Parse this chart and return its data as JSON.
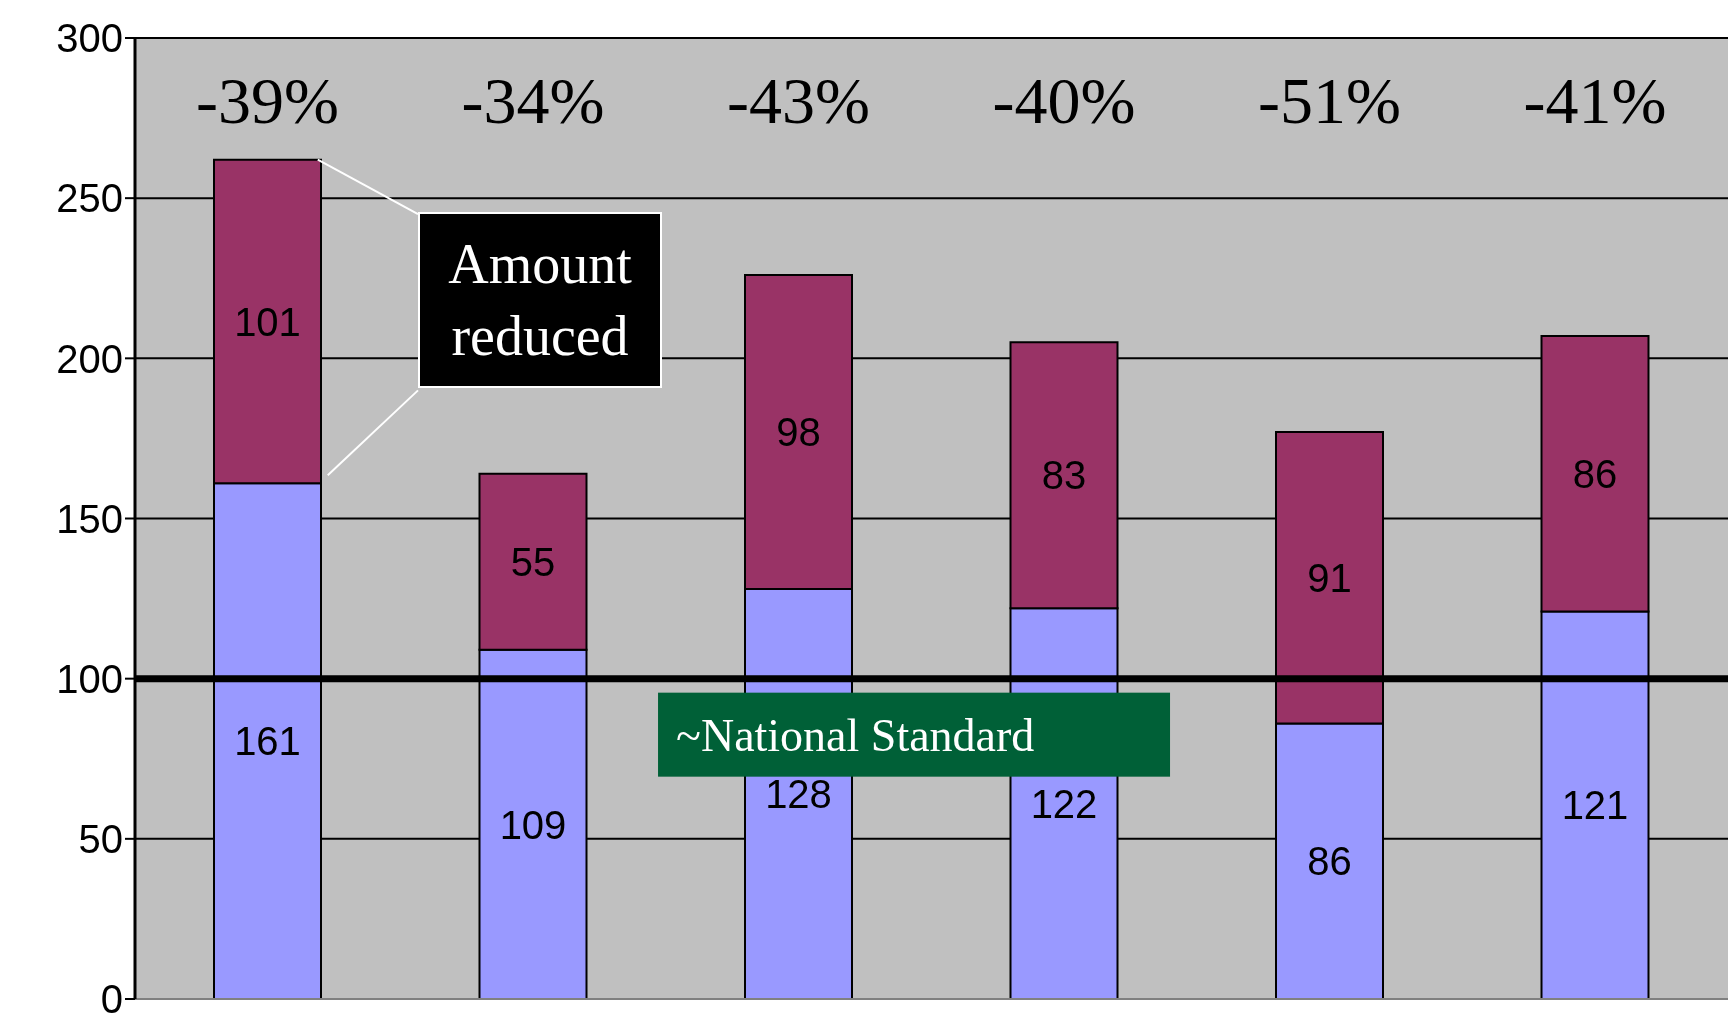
{
  "chart_data": {
    "type": "bar",
    "stacked": true,
    "categories": [
      null,
      null,
      null,
      null,
      null,
      null
    ],
    "series": [
      {
        "color": "#9999ff",
        "values": [
          161,
          109,
          128,
          122,
          86,
          121
        ]
      },
      {
        "color": "#993366",
        "values": [
          101,
          55,
          98,
          83,
          91,
          86
        ]
      }
    ],
    "ylim": [
      0,
      300
    ],
    "yticks": [
      0,
      50,
      100,
      150,
      200,
      250,
      300
    ],
    "grid": "y",
    "tick_labels": "y",
    "data_labels": true,
    "annotations": [
      "-39%",
      "-34%",
      "-43%",
      "-40%",
      "-51%",
      "-41%",
      "Amount reduced"
    ],
    "ref_lines": [
      {
        "axis": "y",
        "value": 100,
        "label": "~National Standard",
        "color": "#000000"
      }
    ]
  }
}
